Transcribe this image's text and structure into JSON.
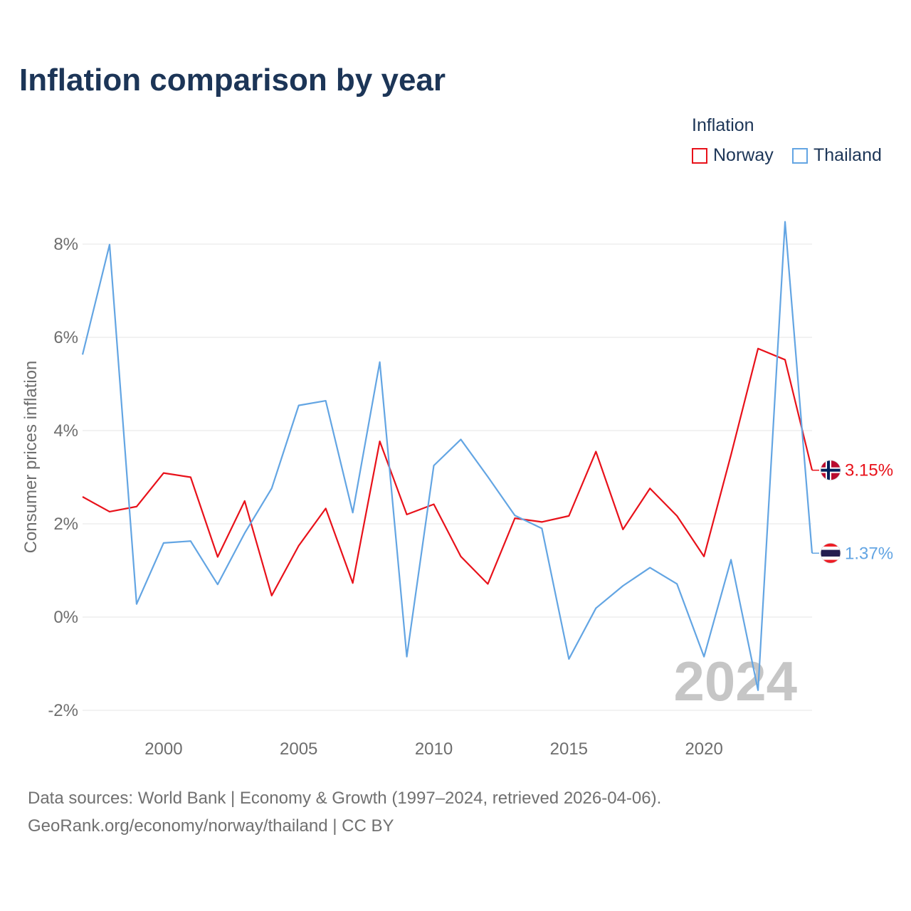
{
  "title": "Inflation comparison by year",
  "legend": {
    "title": "Inflation",
    "items": [
      {
        "label": "Norway",
        "color": "#e8111a"
      },
      {
        "label": "Thailand",
        "color": "#63a5e3"
      }
    ]
  },
  "year_label": "2024",
  "footer": {
    "line1": "Data sources: World Bank | Economy & Growth (1997–2024, retrieved 2026-04-06).",
    "line2": "GeoRank.org/economy/norway/thailand | CC BY"
  },
  "end_labels": [
    {
      "series": "Norway",
      "text": "3.15%",
      "flag": "norway-flag-icon"
    },
    {
      "series": "Thailand",
      "text": "1.37%",
      "flag": "thailand-flag-icon"
    }
  ],
  "chart_data": {
    "type": "line",
    "title": "Inflation comparison by year",
    "xlabel": "",
    "ylabel": "Consumer prices inflation",
    "xlim": [
      1997,
      2024
    ],
    "ylim": [
      -2,
      8
    ],
    "xticks": [
      2000,
      2005,
      2010,
      2015,
      2020
    ],
    "xtick_labels": [
      "2000",
      "2005",
      "2010",
      "2015",
      "2020"
    ],
    "yticks": [
      -2,
      0,
      2,
      4,
      6,
      8
    ],
    "ytick_labels": [
      "-2%",
      "0%",
      "2%",
      "4%",
      "6%",
      "8%"
    ],
    "grid": true,
    "legend_position": "top-right",
    "x": [
      1997,
      1998,
      1999,
      2000,
      2001,
      2002,
      2003,
      2004,
      2005,
      2006,
      2007,
      2008,
      2009,
      2010,
      2011,
      2012,
      2013,
      2014,
      2015,
      2016,
      2017,
      2018,
      2019,
      2020,
      2021,
      2022,
      2023,
      2024
    ],
    "series": [
      {
        "name": "Norway",
        "color": "#e8111a",
        "values": [
          2.58,
          2.26,
          2.37,
          3.09,
          3.0,
          1.29,
          2.49,
          0.46,
          1.53,
          2.33,
          0.73,
          3.77,
          2.2,
          2.42,
          1.3,
          0.71,
          2.12,
          2.04,
          2.17,
          3.55,
          1.88,
          2.76,
          2.17,
          1.3,
          3.48,
          5.76,
          5.52,
          3.15
        ]
      },
      {
        "name": "Thailand",
        "color": "#63a5e3",
        "values": [
          5.63,
          7.99,
          0.28,
          1.59,
          1.63,
          0.7,
          1.8,
          2.76,
          4.54,
          4.64,
          2.24,
          5.47,
          -0.85,
          3.25,
          3.81,
          3.01,
          2.18,
          1.9,
          -0.9,
          0.19,
          0.67,
          1.06,
          0.71,
          -0.85,
          1.23,
          -1.57,
          8.48,
          1.37
        ]
      }
    ]
  }
}
